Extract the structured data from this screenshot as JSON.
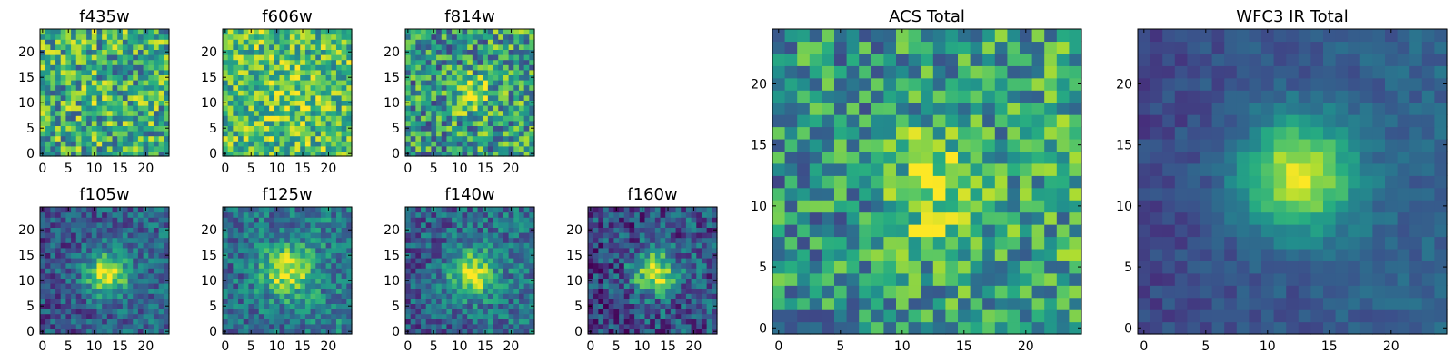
{
  "chart_data": [
    {
      "type": "heatmap",
      "title": "f435w",
      "xlabel": "",
      "ylabel": "",
      "xlim": [
        -0.5,
        24.5
      ],
      "ylim": [
        -0.5,
        24.5
      ],
      "xticks": [
        "0",
        "5",
        "10",
        "15",
        "20"
      ],
      "yticks": [
        "0",
        "5",
        "10",
        "15",
        "20"
      ],
      "colormap": "viridis",
      "grid": false,
      "legend": "none"
    },
    {
      "type": "heatmap",
      "title": "f606w",
      "xlabel": "",
      "ylabel": "",
      "xlim": [
        -0.5,
        24.5
      ],
      "ylim": [
        -0.5,
        24.5
      ],
      "xticks": [
        "0",
        "5",
        "10",
        "15",
        "20"
      ],
      "yticks": [
        "0",
        "5",
        "10",
        "15",
        "20"
      ],
      "colormap": "viridis",
      "grid": false,
      "legend": "none"
    },
    {
      "type": "heatmap",
      "title": "f814w",
      "xlabel": "",
      "ylabel": "",
      "xlim": [
        -0.5,
        24.5
      ],
      "ylim": [
        -0.5,
        24.5
      ],
      "xticks": [
        "0",
        "5",
        "10",
        "15",
        "20"
      ],
      "yticks": [
        "0",
        "5",
        "10",
        "15",
        "20"
      ],
      "colormap": "viridis",
      "grid": false,
      "legend": "none"
    },
    {
      "type": "heatmap",
      "title": "f105w",
      "xlabel": "",
      "ylabel": "",
      "xlim": [
        -0.5,
        24.5
      ],
      "ylim": [
        -0.5,
        24.5
      ],
      "xticks": [
        "0",
        "5",
        "10",
        "15",
        "20"
      ],
      "yticks": [
        "0",
        "5",
        "10",
        "15",
        "20"
      ],
      "colormap": "viridis",
      "grid": false,
      "legend": "none"
    },
    {
      "type": "heatmap",
      "title": "f125w",
      "xlabel": "",
      "ylabel": "",
      "xlim": [
        -0.5,
        24.5
      ],
      "ylim": [
        -0.5,
        24.5
      ],
      "xticks": [
        "0",
        "5",
        "10",
        "15",
        "20"
      ],
      "yticks": [
        "0",
        "5",
        "10",
        "15",
        "20"
      ],
      "colormap": "viridis",
      "grid": false,
      "legend": "none"
    },
    {
      "type": "heatmap",
      "title": "f140w",
      "xlabel": "",
      "ylabel": "",
      "xlim": [
        -0.5,
        24.5
      ],
      "ylim": [
        -0.5,
        24.5
      ],
      "xticks": [
        "0",
        "5",
        "10",
        "15",
        "20"
      ],
      "yticks": [
        "0",
        "5",
        "10",
        "15",
        "20"
      ],
      "colormap": "viridis",
      "grid": false,
      "legend": "none"
    },
    {
      "type": "heatmap",
      "title": "f160w",
      "xlabel": "",
      "ylabel": "",
      "xlim": [
        -0.5,
        24.5
      ],
      "ylim": [
        -0.5,
        24.5
      ],
      "xticks": [
        "0",
        "5",
        "10",
        "15",
        "20"
      ],
      "yticks": [
        "0",
        "5",
        "10",
        "15",
        "20"
      ],
      "colormap": "viridis",
      "grid": false,
      "legend": "none"
    },
    {
      "type": "heatmap",
      "title": "ACS Total",
      "xlabel": "",
      "ylabel": "",
      "xlim": [
        -0.5,
        24.5
      ],
      "ylim": [
        -0.5,
        24.5
      ],
      "xticks": [
        "0",
        "5",
        "10",
        "15",
        "20"
      ],
      "yticks": [
        "0",
        "5",
        "10",
        "15",
        "20"
      ],
      "colormap": "viridis",
      "grid": false,
      "legend": "none"
    },
    {
      "type": "heatmap",
      "title": "WFC3 IR Total",
      "xlabel": "",
      "ylabel": "",
      "xlim": [
        -0.5,
        24.5
      ],
      "ylim": [
        -0.5,
        24.5
      ],
      "xticks": [
        "0",
        "5",
        "10",
        "15",
        "20"
      ],
      "yticks": [
        "0",
        "5",
        "10",
        "15",
        "20"
      ],
      "colormap": "viridis",
      "grid": false,
      "legend": "none"
    }
  ]
}
